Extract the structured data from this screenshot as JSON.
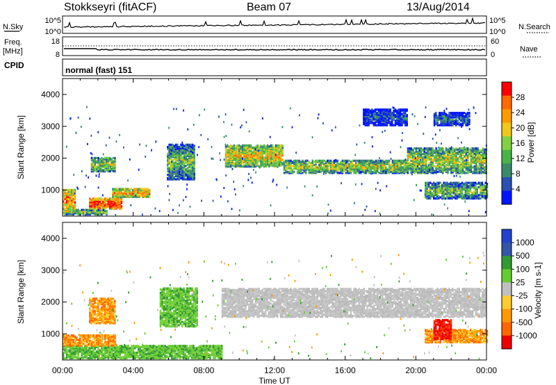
{
  "header": {
    "station": "Stokkseyri (fitACF)",
    "beam": "Beam 07",
    "date": "13/Aug/2014"
  },
  "strip": {
    "nsky_label": "N.Sky",
    "nsky_ticks": [
      "10^5",
      "10^0"
    ],
    "nsearch_label": "N.Search",
    "nsearch_ticks": [
      "10^5",
      "10^0"
    ],
    "freq_label": "Freq.",
    "freq_unit": "[MHz]",
    "freq_ticks": [
      "18",
      "8"
    ],
    "nave_label": "Nave",
    "nave_ticks": [
      "60",
      "0"
    ],
    "cpid_label": "CPID",
    "cpid_value": "normal (fast) 151"
  },
  "colors": {
    "power_scale": [
      "#0015ff",
      "#2a50b0",
      "#3c8a6c",
      "#49b34a",
      "#7fd241",
      "#f0c81c",
      "#ff9a00",
      "#ff6a00",
      "#ff0000"
    ],
    "velocity_scale": [
      "#ee0000",
      "#ff6600",
      "#ff9900",
      "#ffcc33",
      "#c0c0c0",
      "#66cc33",
      "#339933",
      "#3355aa",
      "#2244cc"
    ]
  },
  "chart_data": [
    {
      "type": "heatmap",
      "quantity": "Power",
      "ylabel": "Slant Range [km]",
      "colorbar_label": "Power [dB]",
      "colorbar_ticks": [
        "28",
        "24",
        "20",
        "16",
        "12",
        "8",
        "4"
      ],
      "y_ticks": [
        "4000",
        "3000",
        "2000",
        "1000"
      ],
      "x_ticks": [],
      "xlim_hours": [
        0,
        24
      ],
      "ylim_km": [
        180,
        4500
      ],
      "features": [
        {
          "t0": 0.0,
          "t1": 2.5,
          "r0": 200,
          "r1": 350,
          "level": 0.5
        },
        {
          "t0": 0.0,
          "t1": 0.7,
          "r0": 300,
          "r1": 1000,
          "level": 0.8
        },
        {
          "t0": 1.5,
          "t1": 3.3,
          "r0": 380,
          "r1": 700,
          "level": 0.95
        },
        {
          "t0": 2.8,
          "t1": 4.9,
          "r0": 750,
          "r1": 1000,
          "level": 0.75
        },
        {
          "t0": 1.6,
          "t1": 3.0,
          "r0": 1550,
          "r1": 2000,
          "level": 0.55
        },
        {
          "t0": 5.9,
          "t1": 7.5,
          "r0": 1300,
          "r1": 2400,
          "level": 0.45
        },
        {
          "t0": 9.2,
          "t1": 12.5,
          "r0": 1700,
          "r1": 2400,
          "level": 0.65
        },
        {
          "t0": 12.5,
          "t1": 19.5,
          "r0": 1500,
          "r1": 1900,
          "level": 0.55
        },
        {
          "t0": 19.5,
          "t1": 24.0,
          "r0": 1500,
          "r1": 2300,
          "level": 0.55
        },
        {
          "t0": 20.5,
          "t1": 24.0,
          "r0": 700,
          "r1": 1200,
          "level": 0.45
        },
        {
          "t0": 17.0,
          "t1": 19.5,
          "r0": 3000,
          "r1": 3500,
          "level": 0.2
        },
        {
          "t0": 21.0,
          "t1": 23.0,
          "r0": 3000,
          "r1": 3400,
          "level": 0.25
        }
      ]
    },
    {
      "type": "heatmap",
      "quantity": "Velocity",
      "ylabel": "Slant Range [km]",
      "xlabel": "Time UT",
      "colorbar_label": "Velocity [m s-1]",
      "colorbar_ticks": [
        "1000",
        "500",
        "100",
        "25",
        "-25",
        "-100",
        "-500",
        "-1000"
      ],
      "y_ticks": [
        "4000",
        "3000",
        "2000",
        "1000"
      ],
      "x_ticks": [
        "00:00",
        "04:00",
        "08:00",
        "12:00",
        "16:00",
        "20:00",
        "00:00"
      ],
      "xlim_hours": [
        0,
        24
      ],
      "ylim_km": [
        180,
        4500
      ],
      "features": [
        {
          "t0": 0.0,
          "t1": 9.0,
          "r0": 200,
          "r1": 600,
          "vel": "green"
        },
        {
          "t0": 0.0,
          "t1": 3.0,
          "r0": 600,
          "r1": 950,
          "vel": "orange"
        },
        {
          "t0": 1.5,
          "t1": 3.0,
          "r0": 1300,
          "r1": 2100,
          "vel": "orange"
        },
        {
          "t0": 5.5,
          "t1": 7.6,
          "r0": 1200,
          "r1": 2400,
          "vel": "green"
        },
        {
          "t0": 9.0,
          "t1": 24.0,
          "r0": 1500,
          "r1": 2400,
          "vel": "grey"
        },
        {
          "t0": 20.5,
          "t1": 24.0,
          "r0": 700,
          "r1": 1100,
          "vel": "orange"
        },
        {
          "t0": 21.0,
          "t1": 22.0,
          "r0": 800,
          "r1": 1400,
          "vel": "red"
        }
      ]
    }
  ]
}
